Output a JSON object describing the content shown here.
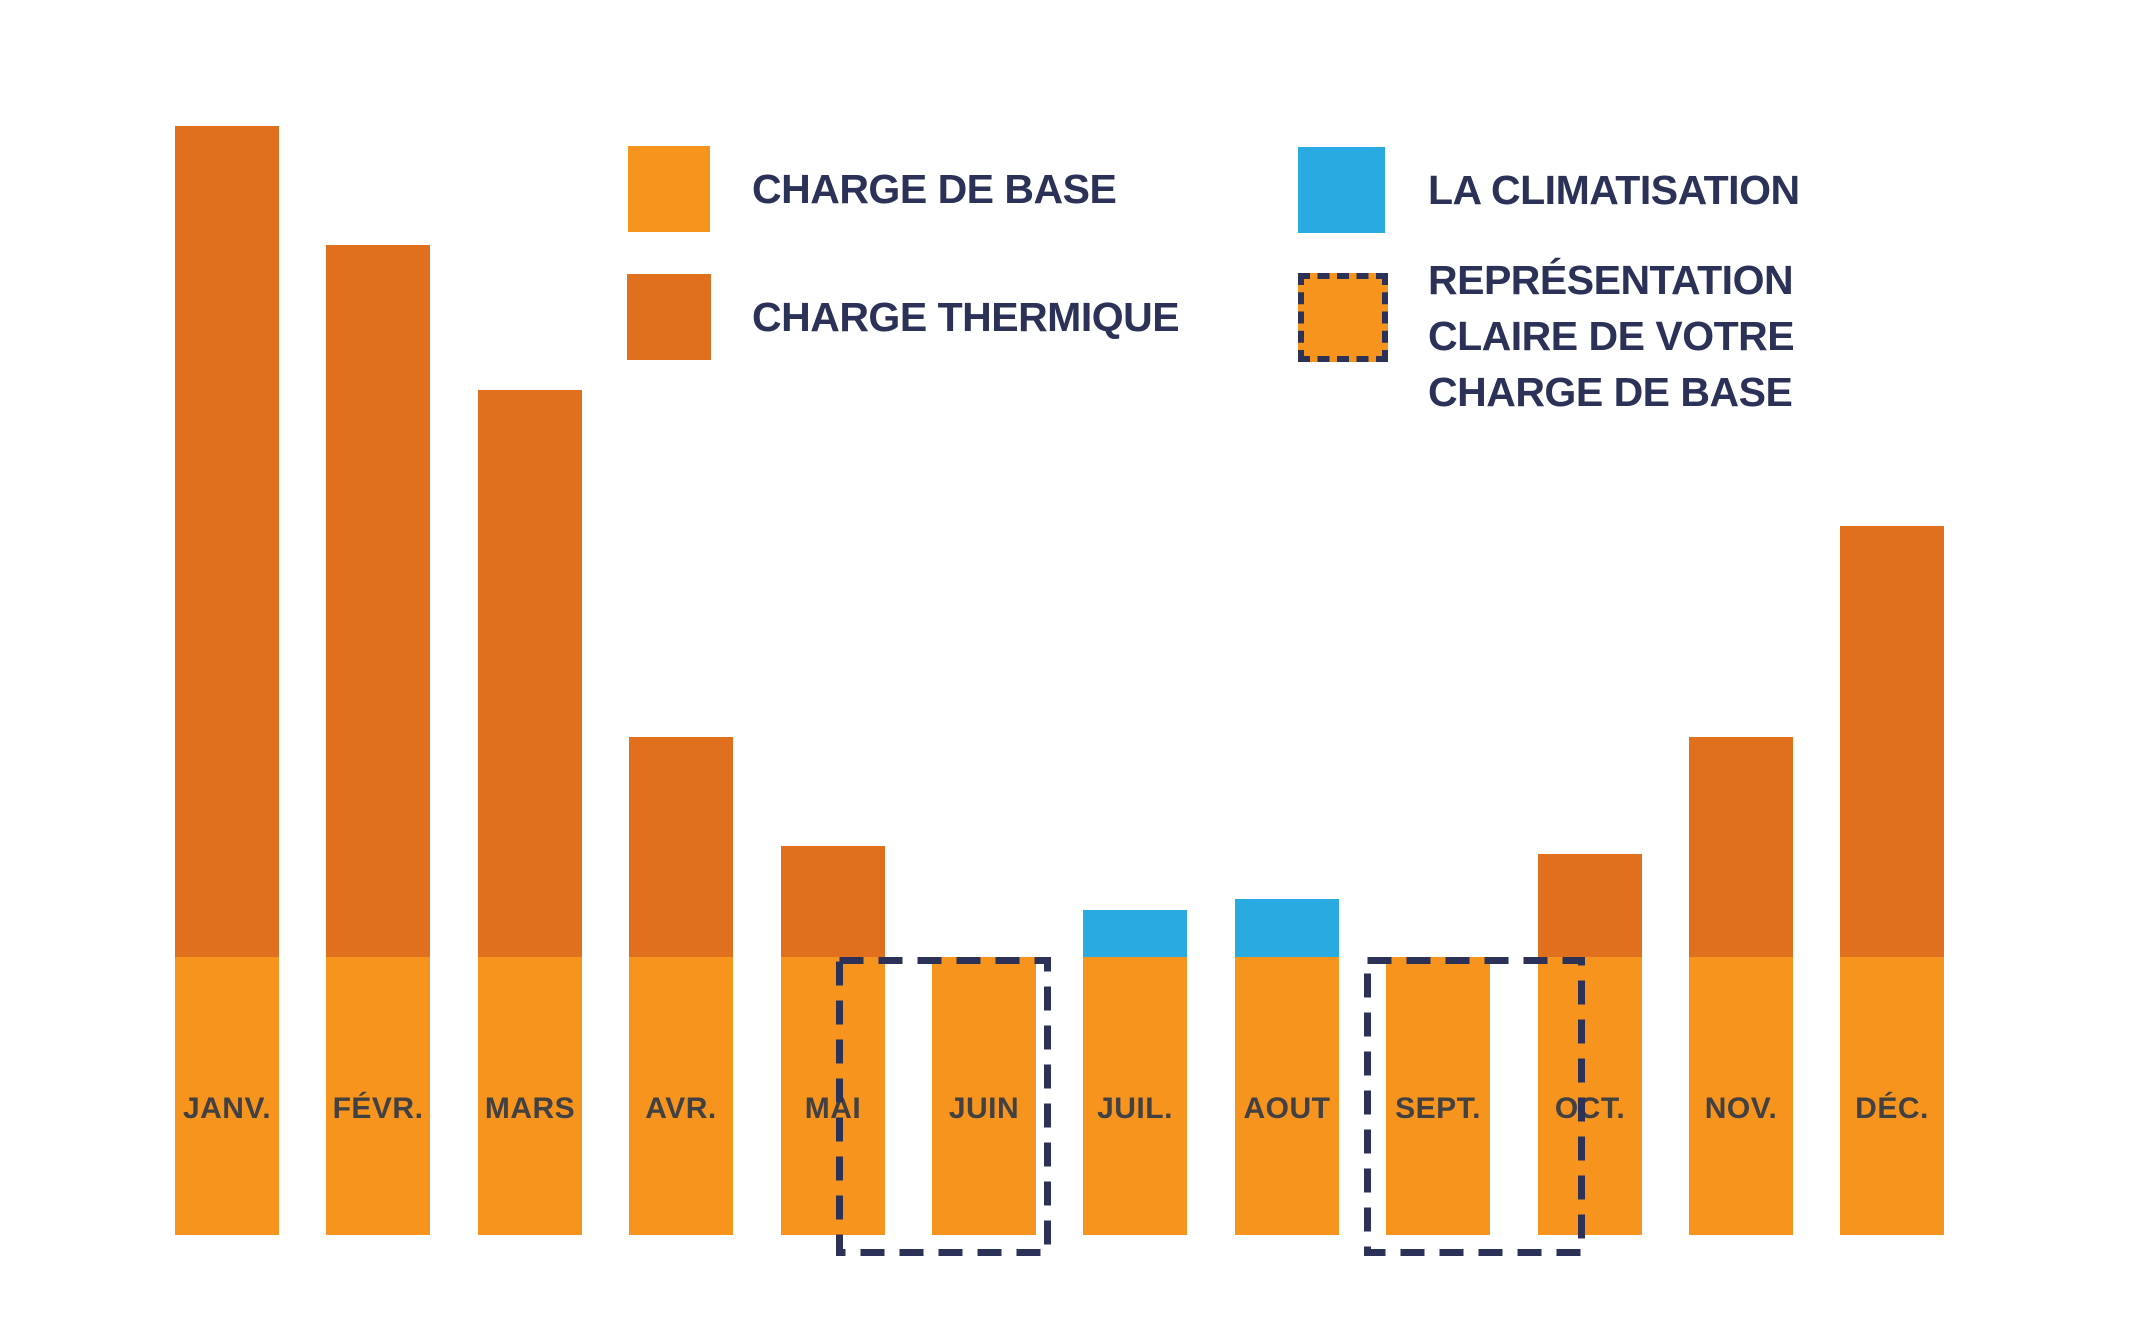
{
  "page": {
    "background": "#FFFFFF"
  },
  "palette": {
    "base_orange": "#F7941E",
    "thermal_orange": "#E0701E",
    "clim_blue": "#29ABE2",
    "legend_text_navy": "#2B3157",
    "month_label_gray": "#414042",
    "highlight_dash_navy": "#2B3157"
  },
  "legend": {
    "items": [
      {
        "label": "CHARGE DE BASE",
        "swatch": "solid-orange",
        "color": "#F7941E"
      },
      {
        "label": "CHARGE THERMIQUE",
        "swatch": "solid-dark-orange",
        "color": "#E0701E"
      },
      {
        "label": "LA CLIMATISATION",
        "swatch": "solid-blue",
        "color": "#29ABE2"
      },
      {
        "label": "REPRÉSENTATION\nCLAIRE DE VOTRE\nCHARGE DE BASE",
        "swatch": "dashed-orange",
        "color": "#F7941E",
        "border_color": "#2B3157"
      }
    ]
  },
  "chart_data": {
    "type": "bar",
    "stacked": true,
    "title": "",
    "xlabel": "",
    "ylabel": "",
    "categories": [
      "JANV.",
      "FÉVR.",
      "MARS",
      "AVR.",
      "MAI",
      "JUIN",
      "JUIL.",
      "AOUT",
      "SEPT.",
      "OCT.",
      "NOV.",
      "DÉC."
    ],
    "series": [
      {
        "name": "CHARGE DE BASE",
        "color": "#F7941E",
        "values": [
          100,
          100,
          100,
          100,
          100,
          100,
          100,
          100,
          100,
          100,
          100,
          100
        ]
      },
      {
        "name": "CHARGE THERMIQUE",
        "color": "#E0701E",
        "values": [
          299,
          256,
          204,
          79,
          40,
          0,
          0,
          0,
          0,
          37,
          79,
          155
        ]
      },
      {
        "name": "LA CLIMATISATION",
        "color": "#29ABE2",
        "values": [
          0,
          0,
          0,
          0,
          0,
          0,
          17,
          21,
          0,
          0,
          0,
          0
        ]
      }
    ],
    "units": "relative units (base load = 100); no numeric value axis is shown in the graphic",
    "axes": {
      "y_axis": "none",
      "x_labels_inside_bars": true,
      "gridlines": false
    },
    "legend_position": "top",
    "highlighted_months": [
      "JUIN",
      "SEPT."
    ],
    "highlight_note": "dashed navy boxes outline the base-load-only summer bars (box 1 spans right half of MAI through JUIN, box 2 spans SEPT. through left half of OCT.)"
  }
}
